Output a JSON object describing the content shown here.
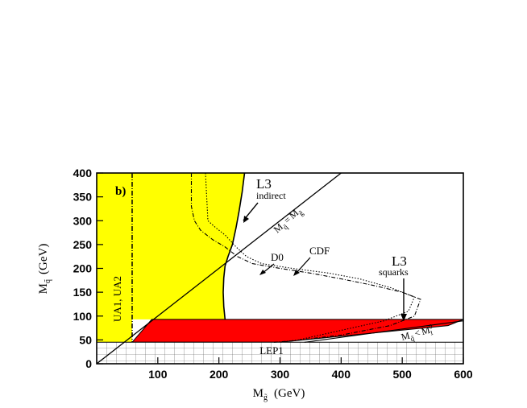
{
  "chart_data": {
    "type": "area",
    "panel_label": "b)",
    "xlabel_main": "M",
    "xlabel_sub": "g̃",
    "xlabel_unit": "(GeV)",
    "ylabel_main": "M",
    "ylabel_sub": "q̃",
    "ylabel_unit": "(GeV)",
    "xlim": [
      0,
      600
    ],
    "ylim": [
      0,
      400
    ],
    "x_ticks": [
      100,
      200,
      300,
      400,
      500,
      600
    ],
    "y_ticks": [
      0,
      50,
      100,
      150,
      200,
      250,
      300,
      350,
      400
    ],
    "colors": {
      "l3_indirect": "#ffff00",
      "l3_squarks": "#ff0000",
      "lep1_grid": "#555555",
      "frame": "#000000"
    },
    "regions": [
      {
        "name": "UA1, UA2",
        "label": "UA1, UA2",
        "x_limit": 58
      },
      {
        "name": "L3 indirect",
        "label": "L3",
        "sublabel": "indirect",
        "boundary": [
          [
            242,
            400
          ],
          [
            238,
            360
          ],
          [
            233,
            320
          ],
          [
            228,
            285
          ],
          [
            222,
            250
          ],
          [
            215,
            225
          ],
          [
            210,
            205
          ],
          [
            208,
            180
          ],
          [
            207,
            150
          ],
          [
            208,
            120
          ],
          [
            210,
            93
          ]
        ]
      },
      {
        "name": "L3 squarks",
        "label": "L3",
        "sublabel": "squarks",
        "polygon": [
          [
            58,
            45
          ],
          [
            90,
            93
          ],
          [
            600,
            93
          ],
          [
            575,
            80
          ],
          [
            300,
            45
          ]
        ]
      },
      {
        "name": "LEP1",
        "label": "LEP1",
        "y_limit": 45
      }
    ],
    "curves": [
      {
        "name": "D0",
        "label": "D0",
        "style": "dash-dot",
        "points": [
          [
            155,
            400
          ],
          [
            155,
            330
          ],
          [
            160,
            300
          ],
          [
            170,
            280
          ],
          [
            190,
            260
          ],
          [
            210,
            245
          ],
          [
            230,
            225
          ],
          [
            255,
            210
          ],
          [
            300,
            200
          ],
          [
            350,
            190
          ],
          [
            400,
            178
          ],
          [
            450,
            165
          ],
          [
            500,
            150
          ],
          [
            530,
            135
          ],
          [
            520,
            100
          ],
          [
            480,
            80
          ],
          [
            400,
            60
          ],
          [
            320,
            48
          ],
          [
            290,
            45
          ]
        ]
      },
      {
        "name": "CDF",
        "label": "CDF",
        "style": "dotted",
        "points": [
          [
            178,
            400
          ],
          [
            180,
            350
          ],
          [
            182,
            300
          ],
          [
            195,
            285
          ],
          [
            210,
            270
          ],
          [
            228,
            245
          ],
          [
            245,
            225
          ],
          [
            270,
            210
          ],
          [
            320,
            200
          ],
          [
            380,
            190
          ],
          [
            430,
            178
          ],
          [
            480,
            160
          ],
          [
            520,
            140
          ],
          [
            510,
            110
          ],
          [
            470,
            90
          ],
          [
            400,
            70
          ],
          [
            330,
            50
          ],
          [
            300,
            45
          ]
        ]
      }
    ],
    "diagonals": [
      {
        "label_lhs": "M",
        "label_lhs_sub": "q̃",
        "relation": "=",
        "label_rhs": "M",
        "label_rhs_sub": "g̃"
      },
      {
        "label_lhs": "M",
        "label_lhs_sub": "q̃",
        "relation": "<",
        "label_rhs": "M",
        "label_rhs_sub": "χ̃",
        "label_rhs_sup": "0",
        "label_rhs_sub2": "1"
      }
    ]
  }
}
